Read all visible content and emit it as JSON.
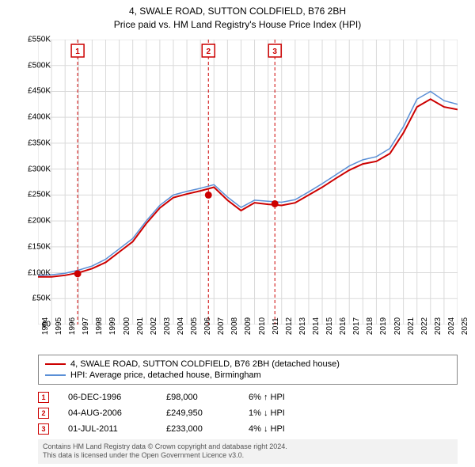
{
  "title_line1": "4, SWALE ROAD, SUTTON COLDFIELD, B76 2BH",
  "title_line2": "Price paid vs. HM Land Registry's House Price Index (HPI)",
  "chart": {
    "type": "line",
    "background_color": "#ffffff",
    "plot_border_color": "#666666",
    "grid_color": "#d9d9d9",
    "x_years": [
      1994,
      1995,
      1996,
      1997,
      1998,
      1999,
      2000,
      2001,
      2002,
      2003,
      2004,
      2005,
      2006,
      2007,
      2008,
      2009,
      2010,
      2011,
      2012,
      2013,
      2014,
      2015,
      2016,
      2017,
      2018,
      2019,
      2020,
      2021,
      2022,
      2023,
      2024,
      2025
    ],
    "y_min": 0,
    "y_max": 550000,
    "y_tick_step": 50000,
    "y_tick_labels": [
      "£0",
      "£50K",
      "£100K",
      "£150K",
      "£200K",
      "£250K",
      "£300K",
      "£350K",
      "£400K",
      "£450K",
      "£500K",
      "£550K"
    ],
    "series": [
      {
        "name": "4, SWALE ROAD, SUTTON COLDFIELD, B76 2BH (detached house)",
        "color": "#cc0000",
        "width": 2,
        "data": [
          [
            1994,
            92000
          ],
          [
            1995,
            92000
          ],
          [
            1996,
            95000
          ],
          [
            1997,
            100000
          ],
          [
            1998,
            108000
          ],
          [
            1999,
            120000
          ],
          [
            2000,
            140000
          ],
          [
            2001,
            160000
          ],
          [
            2002,
            195000
          ],
          [
            2003,
            225000
          ],
          [
            2004,
            245000
          ],
          [
            2005,
            252000
          ],
          [
            2006,
            258000
          ],
          [
            2007,
            265000
          ],
          [
            2008,
            240000
          ],
          [
            2009,
            220000
          ],
          [
            2010,
            235000
          ],
          [
            2011,
            232000
          ],
          [
            2012,
            230000
          ],
          [
            2013,
            235000
          ],
          [
            2014,
            250000
          ],
          [
            2015,
            265000
          ],
          [
            2016,
            282000
          ],
          [
            2017,
            298000
          ],
          [
            2018,
            310000
          ],
          [
            2019,
            315000
          ],
          [
            2020,
            330000
          ],
          [
            2021,
            370000
          ],
          [
            2022,
            420000
          ],
          [
            2023,
            435000
          ],
          [
            2024,
            420000
          ],
          [
            2025,
            415000
          ]
        ]
      },
      {
        "name": "HPI: Average price, detached house, Birmingham",
        "color": "#5a8fd6",
        "width": 1.5,
        "data": [
          [
            1994,
            95000
          ],
          [
            1995,
            96000
          ],
          [
            1996,
            99000
          ],
          [
            1997,
            105000
          ],
          [
            1998,
            113000
          ],
          [
            1999,
            126000
          ],
          [
            2000,
            146000
          ],
          [
            2001,
            166000
          ],
          [
            2002,
            200000
          ],
          [
            2003,
            230000
          ],
          [
            2004,
            250000
          ],
          [
            2005,
            257000
          ],
          [
            2006,
            263000
          ],
          [
            2007,
            270000
          ],
          [
            2008,
            246000
          ],
          [
            2009,
            226000
          ],
          [
            2010,
            240000
          ],
          [
            2011,
            238000
          ],
          [
            2012,
            236000
          ],
          [
            2013,
            241000
          ],
          [
            2014,
            256000
          ],
          [
            2015,
            272000
          ],
          [
            2016,
            289000
          ],
          [
            2017,
            306000
          ],
          [
            2018,
            318000
          ],
          [
            2019,
            324000
          ],
          [
            2020,
            340000
          ],
          [
            2021,
            382000
          ],
          [
            2022,
            435000
          ],
          [
            2023,
            450000
          ],
          [
            2024,
            432000
          ],
          [
            2025,
            425000
          ]
        ]
      }
    ],
    "event_lines": [
      {
        "num": "1",
        "year": 1996.93,
        "color": "#cc0000",
        "dash": "4,3"
      },
      {
        "num": "2",
        "year": 2006.59,
        "color": "#cc0000",
        "dash": "4,3"
      },
      {
        "num": "3",
        "year": 2011.5,
        "color": "#cc0000",
        "dash": "4,3"
      }
    ],
    "event_markers": [
      {
        "year": 1996.93,
        "value": 98000,
        "color": "#cc0000"
      },
      {
        "year": 2006.59,
        "value": 249950,
        "color": "#cc0000"
      },
      {
        "year": 2011.5,
        "value": 233000,
        "color": "#cc0000"
      }
    ]
  },
  "legend": {
    "items": [
      {
        "color": "#cc0000",
        "label": "4, SWALE ROAD, SUTTON COLDFIELD, B76 2BH (detached house)"
      },
      {
        "color": "#5a8fd6",
        "label": "HPI: Average price, detached house, Birmingham"
      }
    ]
  },
  "events": [
    {
      "num": "1",
      "date": "06-DEC-1996",
      "price": "£98,000",
      "delta": "6% ↑ HPI"
    },
    {
      "num": "2",
      "date": "04-AUG-2006",
      "price": "£249,950",
      "delta": "1% ↓ HPI"
    },
    {
      "num": "3",
      "date": "01-JUL-2011",
      "price": "£233,000",
      "delta": "4% ↓ HPI"
    }
  ],
  "footer_line1": "Contains HM Land Registry data © Crown copyright and database right 2024.",
  "footer_line2": "This data is licensed under the Open Government Licence v3.0."
}
